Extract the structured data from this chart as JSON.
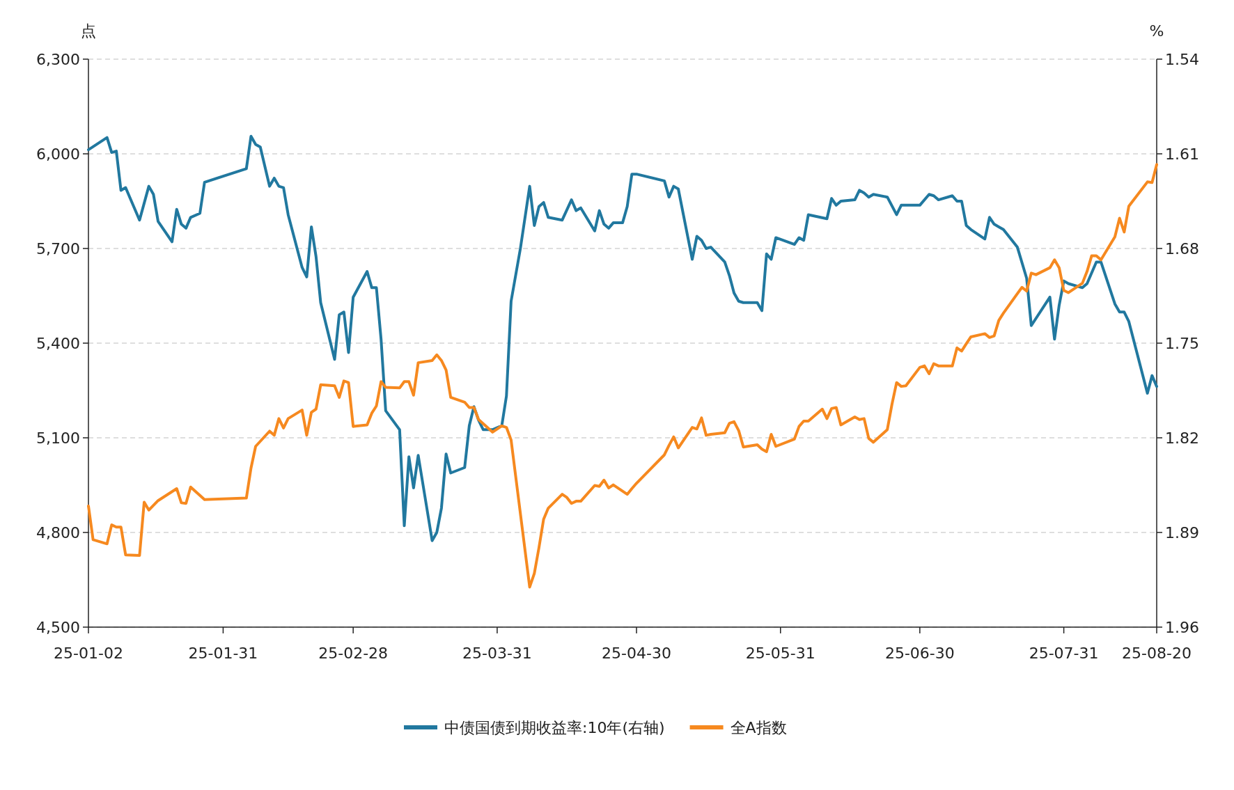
{
  "chart_data": {
    "type": "line",
    "ylabel": "点",
    "y2label": "%",
    "legend": "bottom",
    "grid": "y",
    "xlim": [
      "--01-02",
      "--08-20"
    ],
    "xticks": [
      {
        "value": "--01-02",
        "label": "25-01-02"
      },
      {
        "value": "--01-31",
        "label": "25-01-31"
      },
      {
        "value": "--02-28",
        "label": "25-02-28"
      },
      {
        "value": "--03-31",
        "label": "25-03-31"
      },
      {
        "value": "--04-30",
        "label": "25-04-30"
      },
      {
        "value": "--05-31",
        "label": "25-05-31"
      },
      {
        "value": "--06-30",
        "label": "25-06-30"
      },
      {
        "value": "--07-31",
        "label": "25-07-31"
      },
      {
        "value": "--08-20",
        "label": "25-08-20"
      }
    ],
    "ylim": [
      4500,
      6300
    ],
    "yticks": [
      {
        "value": 4500,
        "label": "4,500"
      },
      {
        "value": 4800,
        "label": "4,800"
      },
      {
        "value": 5100,
        "label": "5,100"
      },
      {
        "value": 5400,
        "label": "5,400"
      },
      {
        "value": 5700,
        "label": "5,700"
      },
      {
        "value": 6000,
        "label": "6,000"
      },
      {
        "value": 6300,
        "label": "6,300"
      }
    ],
    "y2lim": [
      1.96,
      1.54
    ],
    "y2ticks": [
      1.54,
      1.61,
      1.68,
      1.75,
      1.82,
      1.89,
      1.96
    ],
    "series": [
      {
        "name": "中债国债到期收益率:10年(右轴)",
        "color": "#21789f",
        "axis": "y2",
        "x": [
          "--01-02",
          "--01-06",
          "--01-07",
          "--01-08",
          "--01-09",
          "--01-10",
          "--01-13",
          "--01-15",
          "--01-16",
          "--01-17",
          "--01-20",
          "--01-21",
          "--01-22",
          "--01-23",
          "--01-24",
          "--01-26",
          "--01-27",
          "--02-05",
          "--02-06",
          "--02-07",
          "--02-08",
          "--02-10",
          "--02-11",
          "--02-12",
          "--02-13",
          "--02-14",
          "--02-17",
          "--02-18",
          "--02-19",
          "--02-20",
          "--02-21",
          "--02-24",
          "--02-25",
          "--02-26",
          "--02-27",
          "--02-28",
          "--03-03",
          "--03-04",
          "--03-05",
          "--03-06",
          "--03-07",
          "--03-10",
          "--03-11",
          "--03-12",
          "--03-13",
          "--03-14",
          "--03-17",
          "--03-18",
          "--03-19",
          "--03-20",
          "--03-21",
          "--03-24",
          "--03-25",
          "--03-26",
          "--03-27",
          "--03-28",
          "--03-30",
          "--04-01",
          "--04-02",
          "--04-03",
          "--04-05",
          "--04-07",
          "--04-08",
          "--04-09",
          "--04-10",
          "--04-11",
          "--04-14",
          "--04-16",
          "--04-17",
          "--04-18",
          "--04-21",
          "--04-22",
          "--04-23",
          "--04-24",
          "--04-25",
          "--04-27",
          "--04-28",
          "--04-29",
          "--04-30",
          "--05-06",
          "--05-07",
          "--05-08",
          "--05-09",
          "--05-12",
          "--05-13",
          "--05-14",
          "--05-15",
          "--05-16",
          "--05-19",
          "--05-20",
          "--05-21",
          "--05-22",
          "--05-23",
          "--05-26",
          "--05-27",
          "--05-28",
          "--05-29",
          "--05-30",
          "--06-03",
          "--06-04",
          "--06-05",
          "--06-06",
          "--06-10",
          "--06-11",
          "--06-12",
          "--06-13",
          "--06-16",
          "--06-17",
          "--06-18",
          "--06-19",
          "--06-20",
          "--06-23",
          "--06-25",
          "--06-26",
          "--06-30",
          "--07-02",
          "--07-03",
          "--07-04",
          "--07-07",
          "--07-08",
          "--07-09",
          "--07-10",
          "--07-11",
          "--07-14",
          "--07-15",
          "--07-16",
          "--07-17",
          "--07-18",
          "--07-21",
          "--07-23",
          "--07-24",
          "--07-28",
          "--07-29",
          "--07-30",
          "--07-31",
          "--08-01",
          "--08-04",
          "--08-05",
          "--08-06",
          "--08-07",
          "--08-08",
          "--08-11",
          "--08-12",
          "--08-13",
          "--08-14",
          "--08-18",
          "--08-19",
          "--08-20"
        ],
        "values": [
          1.607,
          1.598,
          1.609,
          1.608,
          1.637,
          1.635,
          1.659,
          1.634,
          1.64,
          1.66,
          1.675,
          1.651,
          1.662,
          1.665,
          1.657,
          1.654,
          1.631,
          1.621,
          1.597,
          1.603,
          1.605,
          1.634,
          1.628,
          1.634,
          1.635,
          1.655,
          1.694,
          1.701,
          1.664,
          1.686,
          1.72,
          1.762,
          1.729,
          1.727,
          1.757,
          1.716,
          1.697,
          1.709,
          1.709,
          1.747,
          1.8,
          1.814,
          1.885,
          1.834,
          1.857,
          1.833,
          1.896,
          1.89,
          1.872,
          1.832,
          1.846,
          1.842,
          1.811,
          1.797,
          1.807,
          1.814,
          1.814,
          1.811,
          1.789,
          1.719,
          1.68,
          1.634,
          1.663,
          1.649,
          1.646,
          1.657,
          1.659,
          1.644,
          1.652,
          1.65,
          1.667,
          1.652,
          1.662,
          1.665,
          1.661,
          1.661,
          1.649,
          1.625,
          1.625,
          1.63,
          1.642,
          1.634,
          1.636,
          1.688,
          1.671,
          1.674,
          1.68,
          1.679,
          1.69,
          1.7,
          1.713,
          1.719,
          1.72,
          1.72,
          1.726,
          1.684,
          1.688,
          1.672,
          1.677,
          1.672,
          1.674,
          1.655,
          1.658,
          1.643,
          1.648,
          1.645,
          1.644,
          1.637,
          1.639,
          1.642,
          1.64,
          1.642,
          1.655,
          1.648,
          1.648,
          1.64,
          1.641,
          1.644,
          1.641,
          1.645,
          1.645,
          1.663,
          1.666,
          1.673,
          1.657,
          1.662,
          1.664,
          1.666,
          1.679,
          1.702,
          1.737,
          1.716,
          1.747,
          1.722,
          1.704,
          1.706,
          1.709,
          1.706,
          1.698,
          1.69,
          1.69,
          1.721,
          1.727,
          1.727,
          1.734,
          1.787,
          1.774,
          1.782
        ]
      },
      {
        "name": "全A指数",
        "color": "#f6891f",
        "x": [
          "--01-02",
          "--01-03",
          "--01-06",
          "--01-07",
          "--01-08",
          "--01-09",
          "--01-10",
          "--01-13",
          "--01-14",
          "--01-15",
          "--01-17",
          "--01-21",
          "--01-22",
          "--01-23",
          "--01-24",
          "--01-27",
          "--02-05",
          "--02-06",
          "--02-07",
          "--02-10",
          "--02-11",
          "--02-12",
          "--02-13",
          "--02-14",
          "--02-17",
          "--02-18",
          "--02-19",
          "--02-20",
          "--02-21",
          "--02-24",
          "--02-25",
          "--02-26",
          "--02-27",
          "--02-28",
          "--03-03",
          "--03-04",
          "--03-05",
          "--03-06",
          "--03-07",
          "--03-10",
          "--03-11",
          "--03-12",
          "--03-13",
          "--03-14",
          "--03-17",
          "--03-18",
          "--03-19",
          "--03-20",
          "--03-21",
          "--03-24",
          "--03-25",
          "--03-26",
          "--03-27",
          "--03-30",
          "--04-01",
          "--04-02",
          "--04-03",
          "--04-07",
          "--04-08",
          "--04-09",
          "--04-10",
          "--04-11",
          "--04-14",
          "--04-15",
          "--04-16",
          "--04-17",
          "--04-18",
          "--04-21",
          "--04-22",
          "--04-23",
          "--04-24",
          "--04-25",
          "--04-28",
          "--04-29",
          "--04-30",
          "--05-06",
          "--05-07",
          "--05-08",
          "--05-09",
          "--05-12",
          "--05-13",
          "--05-14",
          "--05-15",
          "--05-16",
          "--05-19",
          "--05-20",
          "--05-21",
          "--05-22",
          "--05-23",
          "--05-26",
          "--05-27",
          "--05-28",
          "--05-29",
          "--05-30",
          "--06-03",
          "--06-04",
          "--06-05",
          "--06-06",
          "--06-09",
          "--06-10",
          "--06-11",
          "--06-12",
          "--06-13",
          "--06-16",
          "--06-17",
          "--06-18",
          "--06-19",
          "--06-20",
          "--06-23",
          "--06-24",
          "--06-25",
          "--06-26",
          "--06-27",
          "--06-30",
          "--07-01",
          "--07-02",
          "--07-03",
          "--07-04",
          "--07-07",
          "--07-08",
          "--07-09",
          "--07-10",
          "--07-11",
          "--07-14",
          "--07-15",
          "--07-16",
          "--07-17",
          "--07-18",
          "--07-21",
          "--07-22",
          "--07-23",
          "--07-24",
          "--07-25",
          "--07-28",
          "--07-29",
          "--07-30",
          "--07-31",
          "--08-01",
          "--08-04",
          "--08-05",
          "--08-06",
          "--08-07",
          "--08-08",
          "--08-11",
          "--08-12",
          "--08-13",
          "--08-14",
          "--08-18",
          "--08-19",
          "--08-20"
        ],
        "values": [
          4884,
          4777,
          4764,
          4824,
          4817,
          4817,
          4729,
          4727,
          4896,
          4871,
          4901,
          4939,
          4894,
          4892,
          4944,
          4904,
          4909,
          5004,
          5073,
          5121,
          5108,
          5161,
          5131,
          5161,
          5188,
          5108,
          5181,
          5191,
          5268,
          5265,
          5228,
          5280,
          5275,
          5136,
          5141,
          5178,
          5201,
          5278,
          5260,
          5258,
          5278,
          5278,
          5235,
          5338,
          5345,
          5363,
          5345,
          5315,
          5228,
          5213,
          5196,
          5196,
          5158,
          5118,
          5138,
          5133,
          5093,
          4627,
          4670,
          4752,
          4842,
          4877,
          4921,
          4911,
          4892,
          4899,
          4899,
          4949,
          4946,
          4966,
          4941,
          4951,
          4921,
          4939,
          4956,
          5046,
          5076,
          5103,
          5068,
          5133,
          5128,
          5163,
          5108,
          5111,
          5116,
          5146,
          5151,
          5123,
          5071,
          5078,
          5064,
          5056,
          5111,
          5073,
          5096,
          5136,
          5153,
          5153,
          5191,
          5161,
          5193,
          5196,
          5141,
          5166,
          5158,
          5161,
          5098,
          5086,
          5126,
          5206,
          5275,
          5263,
          5265,
          5323,
          5328,
          5303,
          5335,
          5328,
          5328,
          5385,
          5375,
          5398,
          5420,
          5430,
          5418,
          5423,
          5472,
          5495,
          5557,
          5577,
          5565,
          5622,
          5617,
          5639,
          5664,
          5639,
          5567,
          5560,
          5590,
          5627,
          5677,
          5677,
          5664,
          5737,
          5796,
          5752,
          5834,
          5911,
          5909,
          5966
        ]
      }
    ]
  }
}
